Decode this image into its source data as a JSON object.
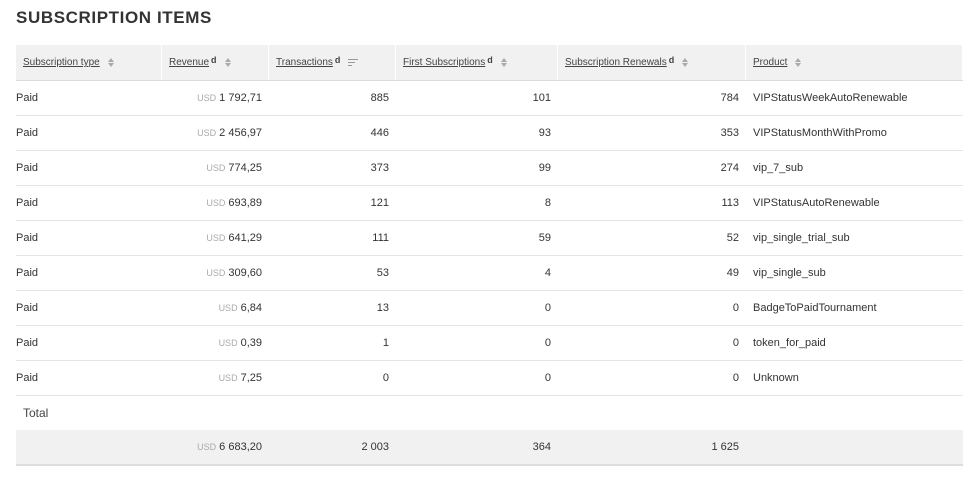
{
  "title": "SUBSCRIPTION ITEMS",
  "currency": "USD",
  "columns": [
    {
      "label": "Subscription type",
      "sup": ""
    },
    {
      "label": "Revenue",
      "sup": "d"
    },
    {
      "label": "Transactions",
      "sup": "d"
    },
    {
      "label": "First Subscriptions",
      "sup": "d"
    },
    {
      "label": "Subscription Renewals",
      "sup": "d"
    },
    {
      "label": "Product",
      "sup": ""
    }
  ],
  "rows": [
    {
      "type": "Paid",
      "revenue": "1 792,71",
      "transactions": "885",
      "first": "101",
      "renewals": "784",
      "product": "VIPStatusWeekAutoRenewable"
    },
    {
      "type": "Paid",
      "revenue": "2 456,97",
      "transactions": "446",
      "first": "93",
      "renewals": "353",
      "product": "VIPStatusMonthWithPromo"
    },
    {
      "type": "Paid",
      "revenue": "774,25",
      "transactions": "373",
      "first": "99",
      "renewals": "274",
      "product": "vip_7_sub"
    },
    {
      "type": "Paid",
      "revenue": "693,89",
      "transactions": "121",
      "first": "8",
      "renewals": "113",
      "product": "VIPStatusAutoRenewable"
    },
    {
      "type": "Paid",
      "revenue": "641,29",
      "transactions": "111",
      "first": "59",
      "renewals": "52",
      "product": "vip_single_trial_sub"
    },
    {
      "type": "Paid",
      "revenue": "309,60",
      "transactions": "53",
      "first": "4",
      "renewals": "49",
      "product": "vip_single_sub"
    },
    {
      "type": "Paid",
      "revenue": "6,84",
      "transactions": "13",
      "first": "0",
      "renewals": "0",
      "product": "BadgeToPaidTournament"
    },
    {
      "type": "Paid",
      "revenue": "0,39",
      "transactions": "1",
      "first": "0",
      "renewals": "0",
      "product": "token_for_paid"
    },
    {
      "type": "Paid",
      "revenue": "7,25",
      "transactions": "0",
      "first": "0",
      "renewals": "0",
      "product": "Unknown"
    }
  ],
  "total": {
    "label": "Total",
    "revenue": "6 683,20",
    "transactions": "2 003",
    "first": "364",
    "renewals": "1 625"
  }
}
